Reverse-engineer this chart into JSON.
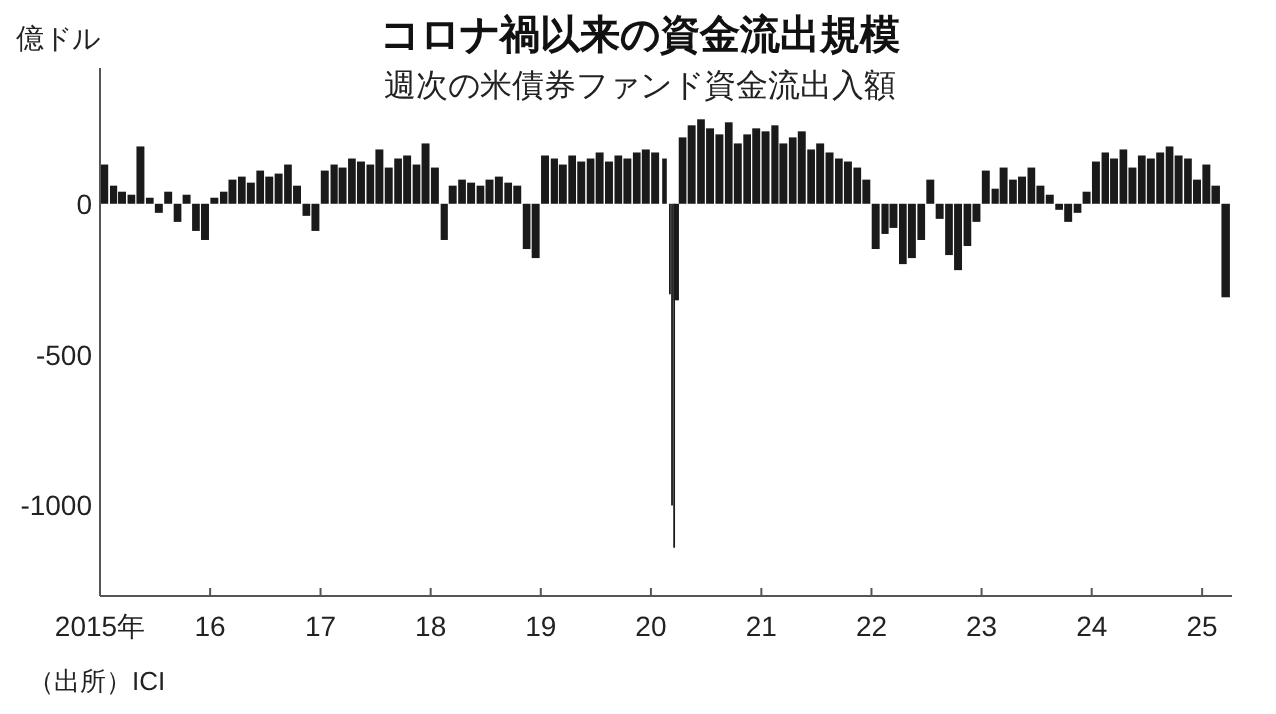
{
  "chart_data": {
    "type": "bar",
    "title": "コロナ禍以来の資金流出規模",
    "subtitle": "週次の米債券ファンド資金流出入額",
    "ylabel": "億ドル",
    "annotations": [
      "（出所）ICI"
    ],
    "x": [
      "2015-01-15",
      "2015-02-15",
      "2015-03-15",
      "2015-04-15",
      "2015-05-15",
      "2015-06-15",
      "2015-07-15",
      "2015-08-15",
      "2015-09-15",
      "2015-10-15",
      "2015-11-15",
      "2015-12-15",
      "2016-01-15",
      "2016-02-15",
      "2016-03-15",
      "2016-04-15",
      "2016-05-15",
      "2016-06-15",
      "2016-07-15",
      "2016-08-15",
      "2016-09-15",
      "2016-10-15",
      "2016-11-15",
      "2016-12-15",
      "2017-01-15",
      "2017-02-15",
      "2017-03-15",
      "2017-04-15",
      "2017-05-15",
      "2017-06-15",
      "2017-07-15",
      "2017-08-15",
      "2017-09-15",
      "2017-10-15",
      "2017-11-15",
      "2017-12-15",
      "2018-01-15",
      "2018-02-15",
      "2018-03-15",
      "2018-04-15",
      "2018-05-15",
      "2018-06-15",
      "2018-07-15",
      "2018-08-15",
      "2018-09-15",
      "2018-10-15",
      "2018-11-15",
      "2018-12-15",
      "2019-01-15",
      "2019-02-15",
      "2019-03-15",
      "2019-04-15",
      "2019-05-15",
      "2019-06-15",
      "2019-07-15",
      "2019-08-15",
      "2019-09-15",
      "2019-10-15",
      "2019-11-15",
      "2019-12-15",
      "2020-01-15",
      "2020-02-15",
      "2020-03-04",
      "2020-03-11",
      "2020-03-18",
      "2020-03-25",
      "2020-04-15",
      "2020-05-15",
      "2020-06-15",
      "2020-07-15",
      "2020-08-15",
      "2020-09-15",
      "2020-10-15",
      "2020-11-15",
      "2020-12-15",
      "2021-01-15",
      "2021-02-15",
      "2021-03-15",
      "2021-04-15",
      "2021-05-15",
      "2021-06-15",
      "2021-07-15",
      "2021-08-15",
      "2021-09-15",
      "2021-10-15",
      "2021-11-15",
      "2021-12-15",
      "2022-01-15",
      "2022-02-15",
      "2022-03-15",
      "2022-04-15",
      "2022-05-15",
      "2022-06-15",
      "2022-07-15",
      "2022-08-15",
      "2022-09-15",
      "2022-10-15",
      "2022-11-15",
      "2022-12-15",
      "2023-01-15",
      "2023-02-15",
      "2023-03-15",
      "2023-04-15",
      "2023-05-15",
      "2023-06-15",
      "2023-07-15",
      "2023-08-15",
      "2023-09-15",
      "2023-10-15",
      "2023-11-15",
      "2023-12-15",
      "2024-01-15",
      "2024-02-15",
      "2024-03-15",
      "2024-04-15",
      "2024-05-15",
      "2024-06-15",
      "2024-07-15",
      "2024-08-15",
      "2024-09-15",
      "2024-10-15",
      "2024-11-15",
      "2024-12-15",
      "2025-01-15",
      "2025-02-15",
      "2025-03-20"
    ],
    "values": [
      130,
      60,
      40,
      30,
      190,
      20,
      -30,
      40,
      -60,
      30,
      -90,
      -120,
      20,
      40,
      80,
      90,
      70,
      110,
      90,
      100,
      130,
      60,
      -40,
      -90,
      110,
      130,
      120,
      150,
      140,
      130,
      180,
      120,
      150,
      160,
      130,
      200,
      120,
      -120,
      60,
      80,
      70,
      60,
      80,
      90,
      70,
      60,
      -150,
      -180,
      160,
      150,
      130,
      160,
      140,
      150,
      170,
      140,
      160,
      150,
      170,
      180,
      170,
      150,
      -300,
      -1000,
      -1140,
      -320,
      220,
      260,
      280,
      250,
      230,
      270,
      200,
      230,
      250,
      240,
      260,
      200,
      220,
      240,
      180,
      200,
      170,
      150,
      140,
      120,
      80,
      -150,
      -100,
      -80,
      -200,
      -180,
      -120,
      80,
      -50,
      -170,
      -220,
      -140,
      -60,
      110,
      50,
      120,
      80,
      90,
      120,
      60,
      30,
      -20,
      -60,
      -30,
      40,
      140,
      170,
      150,
      180,
      120,
      160,
      150,
      170,
      190,
      160,
      150,
      80,
      130,
      60,
      -310
    ],
    "color": "#1a1a1a",
    "xlim": [
      "2015-01-01",
      "2025-04-10"
    ],
    "xticks": [
      {
        "value": "2015-01-01",
        "label": "2015年"
      },
      {
        "value": "2016-01-01",
        "label": "16"
      },
      {
        "value": "2017-01-01",
        "label": "17"
      },
      {
        "value": "2018-01-01",
        "label": "18"
      },
      {
        "value": "2019-01-01",
        "label": "19"
      },
      {
        "value": "2020-01-01",
        "label": "20"
      },
      {
        "value": "2021-01-01",
        "label": "21"
      },
      {
        "value": "2022-01-01",
        "label": "22"
      },
      {
        "value": "2023-01-01",
        "label": "23"
      },
      {
        "value": "2024-01-01",
        "label": "24"
      },
      {
        "value": "2025-01-01",
        "label": "25"
      }
    ],
    "ylim": [
      -1300,
      450
    ],
    "yticks": [
      0,
      -500,
      -1000
    ],
    "grid": false
  }
}
